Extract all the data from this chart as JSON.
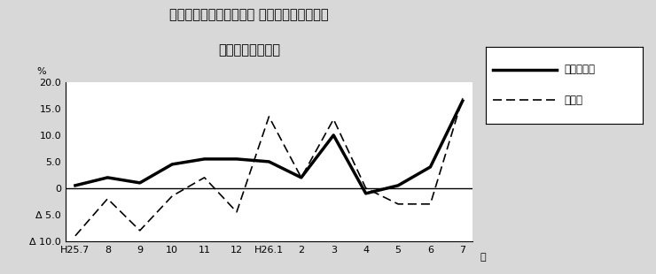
{
  "title_line1": "第２図　所定外労働時間 対前年同月比の推移",
  "title_line2": "（規模５人以上）",
  "xlabel": "月",
  "ylabel": "%",
  "xlabels": [
    "H25.7",
    "8",
    "9",
    "10",
    "11",
    "12",
    "H26.1",
    "2",
    "3",
    "4",
    "5",
    "6",
    "7"
  ],
  "solid_label": "調査産業計",
  "dashed_label": "製造業",
  "solid_data": [
    0.5,
    2.0,
    1.0,
    4.5,
    5.5,
    5.5,
    5.0,
    2.0,
    10.0,
    -1.0,
    0.5,
    4.0,
    16.5
  ],
  "dashed_data": [
    -9.0,
    -2.0,
    -8.0,
    -1.5,
    2.0,
    -4.5,
    13.5,
    2.0,
    13.0,
    0.0,
    -3.0,
    -3.0,
    17.0
  ],
  "ylim": [
    -10.0,
    20.0
  ],
  "yticks": [
    -10.0,
    -5.0,
    0.0,
    5.0,
    10.0,
    15.0,
    20.0
  ],
  "ytick_labels": [
    "Δ 10.0",
    "Δ 5.0",
    "0",
    "5.0",
    "10.0",
    "15.0",
    "20.0"
  ],
  "background_color": "#d8d8d8",
  "plot_bg_color": "#ffffff",
  "line_color": "#000000",
  "title_fontsize": 10.5,
  "tick_fontsize": 8,
  "legend_fontsize": 8.5
}
